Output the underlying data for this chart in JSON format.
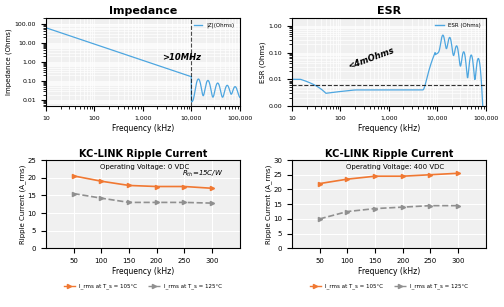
{
  "impedance_title": "Impedance",
  "esr_title": "ESR",
  "ripple0_title": "KC-LINK Ripple Current",
  "ripple0_subtitle": "Operating Voltage: 0 VDC",
  "ripple0_annotation": "R_th=15C/W",
  "ripple400_title": "KC-LINK Ripple Current",
  "ripple400_subtitle": "Operating Voltage: 400 VDC",
  "freq_label": "Frequency (kHz)",
  "impedance_ylabel": "Impedance (Ohms)",
  "esr_ylabel": "ESR (Ohms)",
  "ripple_ylabel": "Ripple Current (A_rms)",
  "impedance_annotation": ">10MHz",
  "esr_annotation": "<4mOhms",
  "legend_label_105": "I_rms at T_s = 105°C",
  "legend_label_125": "I_rms at T_s = 125°C",
  "bg_color": "#f0f0f0",
  "line_color_blue": "#4da6e0",
  "line_color_orange": "#f07832",
  "line_color_gray": "#909090",
  "ripple0_orange": [
    20.5,
    19.0,
    17.8,
    17.5,
    17.5,
    17.0
  ],
  "ripple0_gray": [
    15.5,
    14.2,
    13.0,
    13.0,
    13.0,
    12.8
  ],
  "ripple400_orange": [
    22.0,
    23.5,
    24.5,
    24.5,
    25.0,
    25.5
  ],
  "ripple400_gray": [
    10.0,
    12.5,
    13.5,
    14.0,
    14.5,
    14.5
  ],
  "ripple_freq": [
    50,
    100,
    150,
    200,
    250,
    300
  ]
}
